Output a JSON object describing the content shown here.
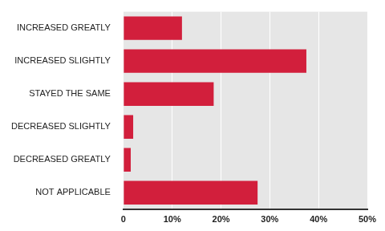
{
  "chart_data": {
    "type": "bar",
    "orientation": "horizontal",
    "categories": [
      "INCREASED GREATLY",
      "INCREASED SLIGHTLY",
      "STAYED THE SAME",
      "DECREASED SLIGHTLY",
      "DECREASED GREATLY",
      "NOT APPLICABLE"
    ],
    "values": [
      12,
      37.5,
      18.5,
      2,
      1.5,
      27.5
    ],
    "color": "#d21f3c",
    "xlim": [
      0,
      50
    ],
    "xticks": [
      0,
      {
        "value": 10,
        "label": "10%"
      },
      {
        "value": 20,
        "label": "20%"
      },
      {
        "value": 30,
        "label": "30%"
      },
      {
        "value": 40,
        "label": "40%"
      },
      {
        "value": 50,
        "label": "50%"
      }
    ],
    "grid": true
  }
}
